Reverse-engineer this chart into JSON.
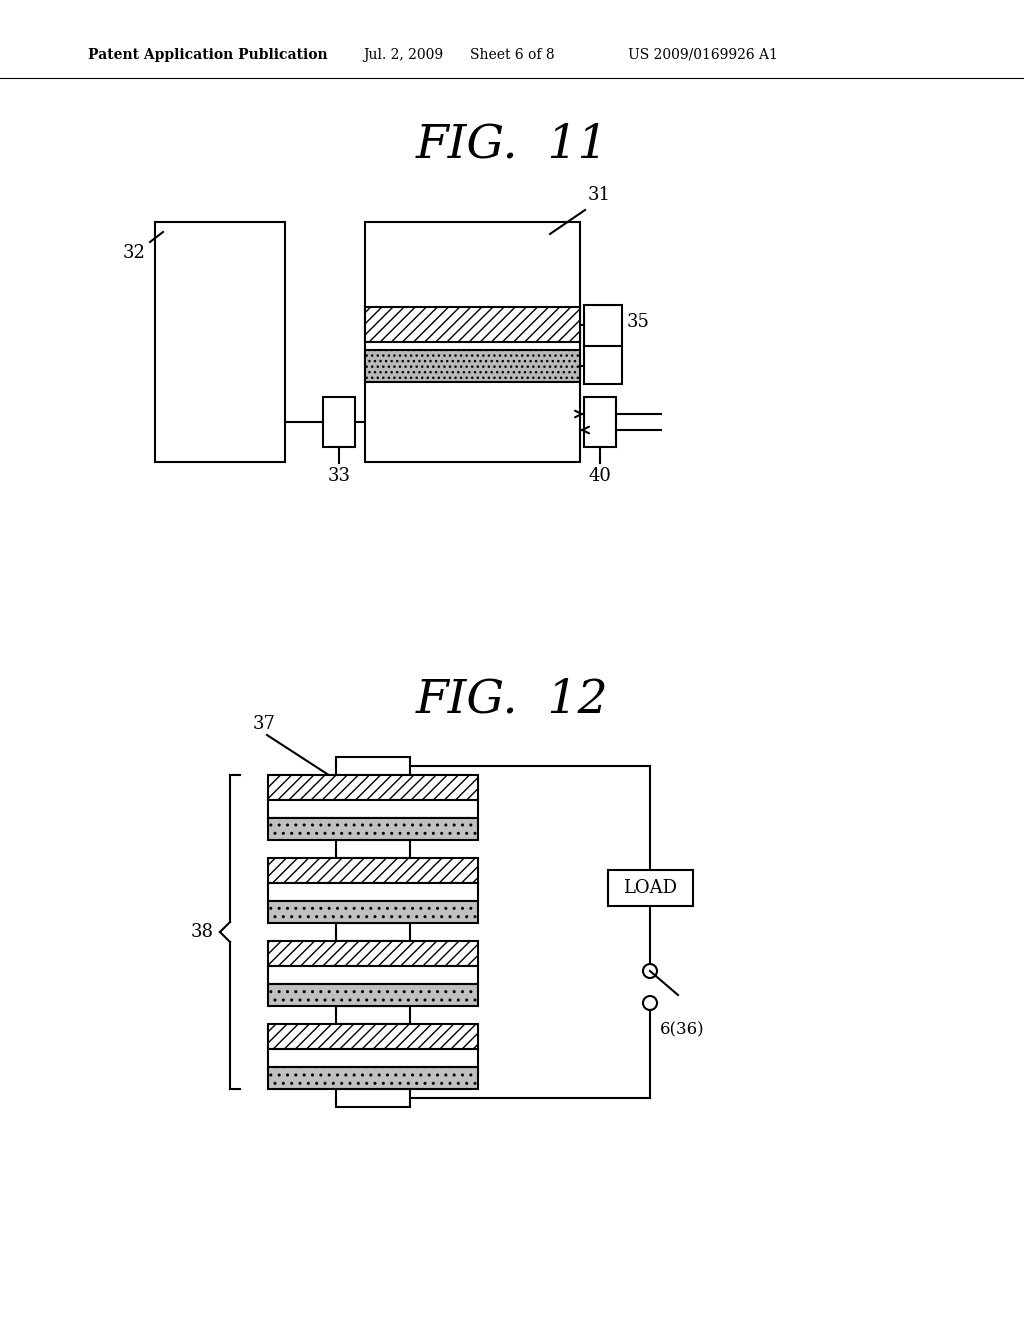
{
  "background_color": "#ffffff",
  "header_text": "Patent Application Publication",
  "header_date": "Jul. 2, 2009",
  "header_sheet": "Sheet 6 of 8",
  "header_patent": "US 2009/0169926 A1",
  "fig11_title": "FIG.  11",
  "fig12_title": "FIG.  12",
  "hatch_diagonal": "///",
  "line_color": "#000000"
}
